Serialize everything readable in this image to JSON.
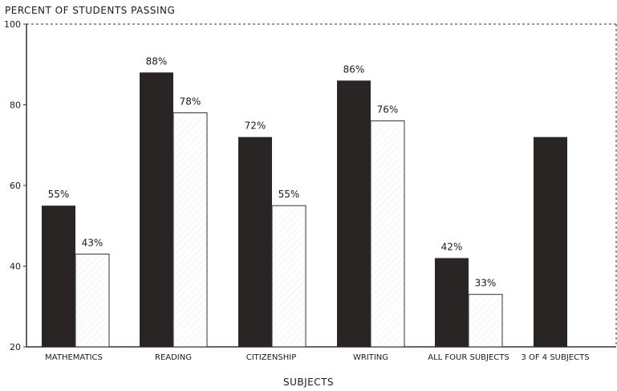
{
  "chart_data": {
    "type": "bar",
    "title": "",
    "ylabel": "PERCENT OF STUDENTS PASSING",
    "xlabel": "SUBJECTS",
    "ylim": [
      20,
      100
    ],
    "yticks": [
      20,
      40,
      60,
      80,
      100
    ],
    "grid": false,
    "legend": "none",
    "categories": [
      "MATHEMATICS",
      "READING",
      "CITIZENSHIP",
      "WRITING",
      "ALL FOUR SUBJECTS",
      "3 OF 4 SUBJECTS"
    ],
    "series": [
      {
        "values": [
          55,
          88,
          72,
          86,
          42,
          72
        ],
        "labels": [
          "55%",
          "88%",
          "72%",
          "86%",
          "42%",
          ""
        ]
      },
      {
        "values": [
          43,
          78,
          55,
          76,
          33,
          null
        ],
        "labels": [
          "43%",
          "78%",
          "55%",
          "76%",
          "33%",
          ""
        ]
      }
    ],
    "colors": {
      "dark": "#2a2525",
      "light": "#ffffff",
      "axis": "#333333"
    }
  }
}
